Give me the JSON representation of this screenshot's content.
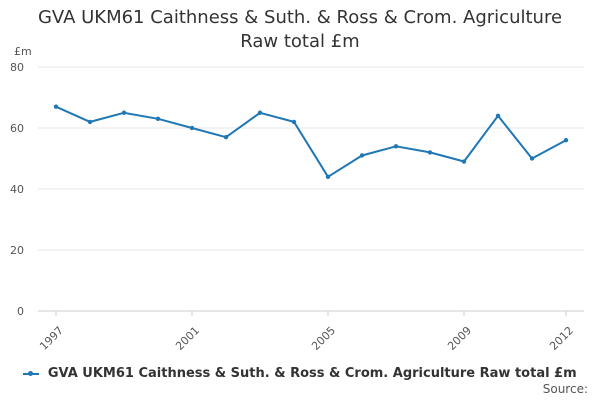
{
  "chart_data": {
    "type": "line",
    "title_lines": [
      "GVA UKM61 Caithness & Suth. & Ross & Crom. Agriculture",
      "Raw total £m"
    ],
    "ylabel": "£m",
    "xlabel": "",
    "x": [
      1997,
      1998,
      1999,
      2000,
      2001,
      2002,
      2003,
      2004,
      2005,
      2006,
      2007,
      2008,
      2009,
      2010,
      2011,
      2012
    ],
    "x_tick_labels": [
      "1997",
      "2001",
      "2005",
      "2009",
      "2012"
    ],
    "y_ticks": [
      0,
      20,
      40,
      60,
      80
    ],
    "y_tick_labels": [
      "0",
      "20",
      "40",
      "60",
      "80"
    ],
    "ylim": [
      0,
      80
    ],
    "grid": true,
    "legend_position": "bottom",
    "series": [
      {
        "name": "GVA UKM61 Caithness & Suth. & Ross & Crom. Agriculture Raw total £m",
        "color": "#1f77b4",
        "values": [
          67,
          62,
          65,
          63,
          60,
          57,
          65,
          62,
          44,
          51,
          54,
          52,
          49,
          64,
          50,
          56
        ]
      }
    ]
  },
  "source_label": "Source:"
}
